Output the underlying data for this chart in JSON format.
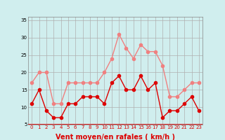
{
  "x": [
    0,
    1,
    2,
    3,
    4,
    5,
    6,
    7,
    8,
    9,
    10,
    11,
    12,
    13,
    14,
    15,
    16,
    17,
    18,
    19,
    20,
    21,
    22,
    23
  ],
  "wind_avg": [
    11,
    15,
    9,
    7,
    7,
    11,
    11,
    13,
    13,
    13,
    11,
    17,
    19,
    15,
    15,
    19,
    15,
    17,
    7,
    9,
    9,
    11,
    13,
    9
  ],
  "wind_gust": [
    17,
    20,
    20,
    11,
    11,
    17,
    17,
    17,
    17,
    17,
    20,
    24,
    31,
    27,
    24,
    28,
    26,
    26,
    22,
    13,
    13,
    15,
    17,
    17
  ],
  "avg_color": "#dd0000",
  "gust_color": "#f08080",
  "background_color": "#d0eeee",
  "grid_color": "#b0b0b0",
  "xlabel": "Vent moyen/en rafales ( km/h )",
  "ylabel": "",
  "ylim": [
    5,
    36
  ],
  "yticks": [
    5,
    10,
    15,
    20,
    25,
    30,
    35
  ],
  "xticks": [
    0,
    1,
    2,
    3,
    4,
    5,
    6,
    7,
    8,
    9,
    10,
    11,
    12,
    13,
    14,
    15,
    16,
    17,
    18,
    19,
    20,
    21,
    22,
    23
  ],
  "title_color": "#dd0000",
  "xlabel_color": "#dd0000",
  "marker_size": 3
}
